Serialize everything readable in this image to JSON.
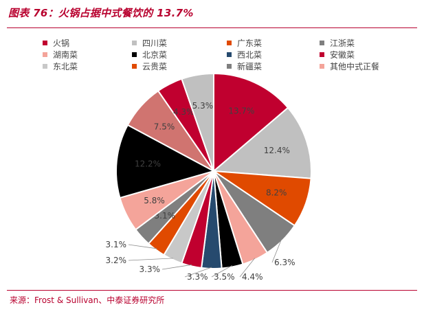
{
  "title": "图表 76：火锅占据中式餐饮的 13.7%",
  "source": "来源：Frost & Sullivan、中泰证券研究所",
  "chart_data": {
    "type": "pie",
    "legend_position": "top",
    "slices": [
      {
        "name": "火锅",
        "value": 13.7,
        "label": "13.7%",
        "color": "#c0002f"
      },
      {
        "name": "四川菜",
        "value": 12.4,
        "label": "12.4%",
        "color": "#c0c0c0"
      },
      {
        "name": "广东菜",
        "value": 8.2,
        "label": "8.2%",
        "color": "#e04a00"
      },
      {
        "name": "江浙菜",
        "value": 6.3,
        "label": "6.3%",
        "color": "#7f7f7f"
      },
      {
        "name": "湖南菜",
        "value": 4.4,
        "label": "4.4%",
        "color": "#f4a49a"
      },
      {
        "name": "北京菜",
        "value": 3.5,
        "label": "3.5%",
        "color": "#000000"
      },
      {
        "name": "西北菜",
        "value": 3.3,
        "label": "3.3%",
        "color": "#264a6e"
      },
      {
        "name": "安徽菜",
        "value": 3.3,
        "label": "3.3%",
        "color": "#c0002f"
      },
      {
        "name": "东北菜",
        "value": 3.2,
        "label": "3.2%",
        "color": "#c8c8c8"
      },
      {
        "name": "云贵菜",
        "value": 3.1,
        "label": "3.1%",
        "color": "#e04a00"
      },
      {
        "name": "新疆菜",
        "value": 3.1,
        "label": "3.1%",
        "color": "#7f7f7f"
      },
      {
        "name": "湖南菜",
        "value": 5.8,
        "label": "5.8%",
        "color": "#f4a49a"
      },
      {
        "name": "北京菜",
        "value": 12.2,
        "label": "12.2%",
        "color": "#000000"
      },
      {
        "name": "其他中式正餐",
        "value": 7.5,
        "label": "7.5%",
        "color": "#d07470"
      },
      {
        "name": "安徽菜",
        "value": 4.3,
        "label": "4.3%",
        "color": "#c0002f"
      },
      {
        "name": "四川菜",
        "value": 5.3,
        "label": "5.3%",
        "color": "#c0c0c0"
      }
    ],
    "legend": [
      {
        "name": "火锅",
        "color": "#c0002f"
      },
      {
        "name": "四川菜",
        "color": "#c0c0c0"
      },
      {
        "name": "广东菜",
        "color": "#e04a00"
      },
      {
        "name": "江浙菜",
        "color": "#7f7f7f"
      },
      {
        "name": "湖南菜",
        "color": "#f4a49a"
      },
      {
        "name": "北京菜",
        "color": "#000000"
      },
      {
        "name": "西北菜",
        "color": "#264a6e"
      },
      {
        "name": "安徽菜",
        "color": "#c0002f"
      },
      {
        "name": "东北菜",
        "color": "#c8c8c8"
      },
      {
        "name": "云贵菜",
        "color": "#e04a00"
      },
      {
        "name": "新疆菜",
        "color": "#7f7f7f"
      },
      {
        "name": "其他中式正餐",
        "color": "#f4a49a"
      }
    ]
  }
}
